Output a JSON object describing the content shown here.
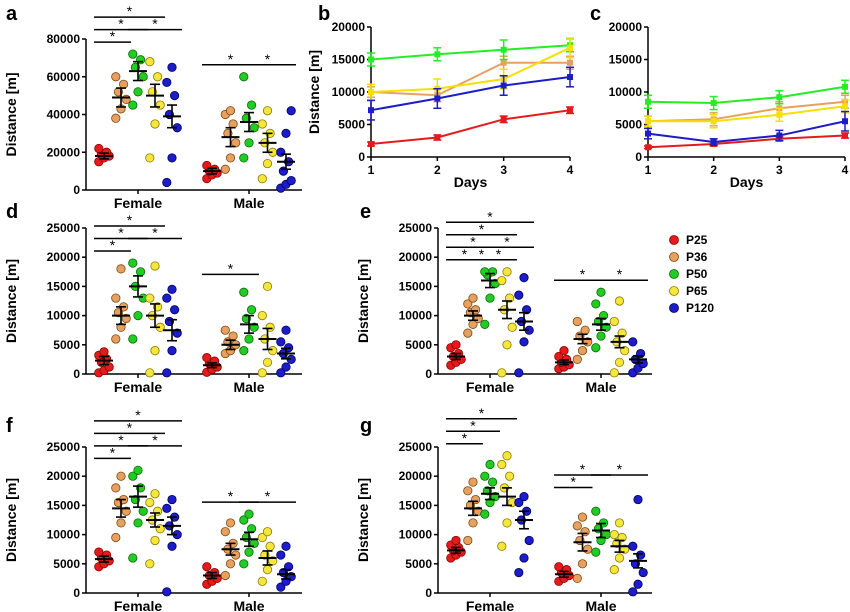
{
  "legend": [
    {
      "name": "P25",
      "color": "#e41a1c"
    },
    {
      "name": "P36",
      "color": "#e8a060"
    },
    {
      "name": "P50",
      "color": "#22cc22"
    },
    {
      "name": "P65",
      "color": "#f5e63c"
    },
    {
      "name": "P120",
      "color": "#1c1cc8"
    }
  ],
  "chart_data": [
    {
      "panel": "a",
      "type": "scatter",
      "ylabel": "Distance [m]",
      "ylim": [
        0,
        80000
      ],
      "yticks": [
        0,
        20000,
        40000,
        60000,
        80000
      ],
      "groups": [
        "Female",
        "Male"
      ],
      "means": {
        "Female": [
          18000,
          49000,
          63000,
          50000,
          39000
        ],
        "Male": [
          10000,
          28000,
          36000,
          25000,
          15000
        ]
      },
      "sem": {
        "Female": [
          1500,
          5000,
          5000,
          6000,
          6000
        ],
        "Male": [
          1500,
          5000,
          5000,
          5000,
          4000
        ]
      },
      "points": {
        "Female": [
          [
            15000,
            17000,
            18000,
            19000,
            20000,
            22000
          ],
          [
            38000,
            43000,
            48000,
            52000,
            56000,
            60000
          ],
          [
            45000,
            52000,
            60000,
            65000,
            69000,
            72000
          ],
          [
            17000,
            35000,
            45000,
            52000,
            60000,
            68000
          ],
          [
            4000,
            17000,
            33000,
            40000,
            50000,
            57000,
            65000
          ]
        ],
        "Male": [
          [
            6000,
            8000,
            9000,
            10000,
            11000,
            13000
          ],
          [
            11000,
            17000,
            25000,
            30000,
            35000,
            40000,
            42000
          ],
          [
            17000,
            25000,
            33000,
            38000,
            45000,
            60000
          ],
          [
            6000,
            14000,
            20000,
            25000,
            30000,
            35000,
            42000
          ],
          [
            1000,
            3000,
            5000,
            10000,
            15000,
            20000,
            30000,
            42000
          ]
        ]
      },
      "sig": [
        {
          "from": 0,
          "to": 1,
          "level": 1
        },
        {
          "from": 0,
          "to": 2,
          "level": 2
        },
        {
          "from": 0,
          "to": 3,
          "level": 3
        },
        {
          "from": 2,
          "to": 4,
          "level": 2
        }
      ],
      "sigMale": [
        {
          "from": 0,
          "to": 2,
          "level": 1
        },
        {
          "from": 2,
          "to": 4,
          "level": 1
        }
      ]
    },
    {
      "panel": "b",
      "type": "line",
      "xlabel": "Days",
      "ylabel": "Distance [m]",
      "x": [
        1,
        2,
        3,
        4
      ],
      "ylim": [
        0,
        20000
      ],
      "yticks": [
        0,
        5000,
        10000,
        15000,
        20000
      ],
      "series": [
        {
          "values": [
            2000,
            3000,
            5800,
            7200
          ],
          "err": [
            300,
            400,
            500,
            500
          ]
        },
        {
          "values": [
            10000,
            9500,
            14500,
            14500
          ],
          "err": [
            800,
            1000,
            1000,
            1000
          ]
        },
        {
          "values": [
            15000,
            15800,
            16500,
            17200
          ],
          "err": [
            1000,
            1000,
            1500,
            1000
          ]
        },
        {
          "values": [
            10000,
            10500,
            12000,
            16800
          ],
          "err": [
            1200,
            1500,
            1500,
            1500
          ]
        },
        {
          "values": [
            7200,
            9000,
            11000,
            12300
          ],
          "err": [
            1500,
            1500,
            1500,
            1500
          ]
        }
      ]
    },
    {
      "panel": "c",
      "type": "line",
      "xlabel": "Days",
      "x": [
        1,
        2,
        3,
        4
      ],
      "ylim": [
        0,
        20000
      ],
      "yticks": [
        0,
        5000,
        10000,
        15000,
        20000
      ],
      "series": [
        {
          "values": [
            1500,
            2000,
            2800,
            3300
          ],
          "err": [
            200,
            300,
            300,
            400
          ]
        },
        {
          "values": [
            5500,
            5800,
            7500,
            8500
          ],
          "err": [
            800,
            1000,
            1000,
            1000
          ]
        },
        {
          "values": [
            8500,
            8300,
            9200,
            10800
          ],
          "err": [
            1000,
            1000,
            1000,
            1000
          ]
        },
        {
          "values": [
            5500,
            5500,
            6500,
            7800
          ],
          "err": [
            800,
            1000,
            1000,
            1000
          ]
        },
        {
          "values": [
            3600,
            2300,
            3300,
            5500
          ],
          "err": [
            800,
            500,
            800,
            1500
          ]
        }
      ]
    },
    {
      "panel": "d",
      "type": "scatter",
      "ylabel": "Distance [m]",
      "ylim": [
        0,
        25000
      ],
      "yticks": [
        0,
        5000,
        10000,
        15000,
        20000,
        25000
      ],
      "groups": [
        "Female",
        "Male"
      ],
      "means": {
        "Female": [
          2300,
          10000,
          15000,
          10000,
          7500
        ],
        "Male": [
          1500,
          5000,
          8500,
          6000,
          3500
        ]
      },
      "sem": {
        "Female": [
          700,
          1500,
          1800,
          2000,
          1800
        ],
        "Male": [
          400,
          800,
          1500,
          1800,
          900
        ]
      },
      "points": {
        "Female": [
          [
            200,
            600,
            1200,
            2000,
            2600,
            3200,
            3800
          ],
          [
            6000,
            8000,
            9500,
            10500,
            11500,
            13000,
            18000
          ],
          [
            6000,
            10000,
            13000,
            15000,
            17500,
            19000
          ],
          [
            200,
            4000,
            8000,
            10000,
            11500,
            13000,
            18500
          ],
          [
            200,
            4000,
            7000,
            9000,
            11000,
            13000,
            14500
          ]
        ],
        "Male": [
          [
            300,
            800,
            1200,
            1800,
            2200,
            2800
          ],
          [
            3500,
            4000,
            5000,
            5500,
            6500,
            7500
          ],
          [
            4000,
            6000,
            8000,
            9500,
            11000,
            14000
          ],
          [
            200,
            2000,
            4000,
            6000,
            8000,
            10000,
            15000
          ],
          [
            200,
            1200,
            2500,
            3500,
            4500,
            5500,
            7500
          ]
        ]
      },
      "sig": [
        {
          "from": 0,
          "to": 1,
          "level": 1
        },
        {
          "from": 0,
          "to": 2,
          "level": 2
        },
        {
          "from": 2,
          "to": 4,
          "level": 2
        },
        {
          "from": 0,
          "to": 3,
          "level": 3
        }
      ],
      "sigMale": [
        {
          "from": 0,
          "to": 2,
          "level": 1
        }
      ]
    },
    {
      "panel": "e",
      "type": "scatter",
      "ylabel": "Distance [m]",
      "ylim": [
        0,
        25000
      ],
      "yticks": [
        0,
        5000,
        10000,
        15000,
        20000,
        25000
      ],
      "groups": [
        "Female",
        "Male"
      ],
      "means": {
        "Female": [
          3000,
          10000,
          16000,
          11000,
          9000
        ],
        "Male": [
          2000,
          6000,
          8500,
          5500,
          2500
        ]
      },
      "sem": {
        "Female": [
          500,
          800,
          1200,
          1500,
          1500
        ],
        "Male": [
          400,
          800,
          1000,
          1000,
          600
        ]
      },
      "points": {
        "Female": [
          [
            1500,
            2000,
            2500,
            3000,
            3500,
            4500,
            5000
          ],
          [
            7000,
            8500,
            9500,
            10500,
            11000,
            12000,
            13000
          ],
          [
            8500,
            13000,
            15500,
            17000,
            17500,
            17500
          ],
          [
            200,
            5000,
            8000,
            11000,
            13000,
            16000,
            17500
          ],
          [
            200,
            5500,
            7500,
            9000,
            11000,
            13500,
            16500
          ]
        ],
        "Male": [
          [
            900,
            1200,
            1600,
            2000,
            2500,
            3000,
            4000
          ],
          [
            2500,
            4000,
            5500,
            6500,
            7500,
            9000
          ],
          [
            4500,
            6500,
            8000,
            9000,
            10000,
            12000,
            14000
          ],
          [
            200,
            2000,
            4000,
            5500,
            7000,
            9000,
            12500
          ],
          [
            200,
            1000,
            1800,
            2500,
            3500,
            5500
          ]
        ]
      },
      "sig": [
        {
          "from": 0,
          "to": 1,
          "level": 1
        },
        {
          "from": 1,
          "to": 2,
          "level": 1
        },
        {
          "from": 2,
          "to": 3,
          "level": 1
        },
        {
          "from": 0,
          "to": 2,
          "level": 2
        },
        {
          "from": 2,
          "to": 4,
          "level": 2
        },
        {
          "from": 0,
          "to": 3,
          "level": 3
        },
        {
          "from": 0,
          "to": 4,
          "level": 4
        }
      ],
      "sigMale": [
        {
          "from": 0,
          "to": 2,
          "level": 1
        },
        {
          "from": 2,
          "to": 4,
          "level": 1
        }
      ]
    },
    {
      "panel": "f",
      "type": "scatter",
      "ylabel": "Distance [m]",
      "ylim": [
        0,
        25000
      ],
      "yticks": [
        0,
        5000,
        10000,
        15000,
        20000,
        25000
      ],
      "groups": [
        "Female",
        "Male"
      ],
      "means": {
        "Female": [
          5800,
          14500,
          16500,
          12500,
          11500
        ],
        "Male": [
          3000,
          7500,
          9200,
          6000,
          3200
        ]
      },
      "sem": {
        "Female": [
          500,
          1500,
          1800,
          1200,
          1500
        ],
        "Male": [
          500,
          1000,
          1200,
          1200,
          800
        ]
      },
      "points": {
        "Female": [
          [
            4500,
            5000,
            5500,
            6000,
            6500,
            7000
          ],
          [
            9500,
            12000,
            14000,
            15500,
            16000,
            18000,
            20000
          ],
          [
            6000,
            12000,
            14000,
            16000,
            18000,
            20000,
            21000
          ],
          [
            5000,
            9000,
            11000,
            12500,
            14000,
            15500,
            17000
          ],
          [
            200,
            8000,
            10000,
            11500,
            13000,
            14500,
            16000
          ]
        ],
        "Male": [
          [
            1500,
            2000,
            2500,
            3000,
            3500,
            4500
          ],
          [
            3000,
            5000,
            6500,
            7500,
            8500,
            10500,
            12000
          ],
          [
            5000,
            7000,
            8500,
            9500,
            11000,
            12500,
            13500
          ],
          [
            2000,
            4000,
            5500,
            6500,
            8000,
            9500,
            10500
          ],
          [
            1000,
            2000,
            2800,
            3500,
            4500,
            6500,
            8000
          ]
        ]
      },
      "sig": [
        {
          "from": 0,
          "to": 1,
          "level": 1
        },
        {
          "from": 0,
          "to": 2,
          "level": 2
        },
        {
          "from": 2,
          "to": 4,
          "level": 2
        },
        {
          "from": 0,
          "to": 3,
          "level": 3
        },
        {
          "from": 0,
          "to": 4,
          "level": 4
        }
      ],
      "sigMale": [
        {
          "from": 0,
          "to": 2,
          "level": 1
        },
        {
          "from": 2,
          "to": 4,
          "level": 1
        }
      ]
    },
    {
      "panel": "g",
      "type": "scatter",
      "ylabel": "Distance [m]",
      "ylim": [
        0,
        25000
      ],
      "yticks": [
        0,
        5000,
        10000,
        15000,
        20000,
        25000
      ],
      "groups": [
        "Female",
        "Male"
      ],
      "means": {
        "Female": [
          7300,
          14500,
          17000,
          16500,
          12500
        ],
        "Male": [
          3200,
          8700,
          10700,
          8000,
          5500
        ]
      },
      "sem": {
        "Female": [
          500,
          1200,
          1000,
          1500,
          1500
        ],
        "Male": [
          500,
          1500,
          1200,
          1000,
          1200
        ]
      },
      "points": {
        "Female": [
          [
            6000,
            6500,
            7000,
            7300,
            7800,
            8200,
            9000
          ],
          [
            9000,
            12000,
            14000,
            15000,
            16000,
            17500,
            19000
          ],
          [
            13500,
            15500,
            16500,
            17500,
            19000,
            20000,
            22000
          ],
          [
            8000,
            12000,
            15500,
            18000,
            20000,
            22000,
            23500
          ],
          [
            3500,
            6000,
            9000,
            12500,
            14000,
            15500,
            16500
          ]
        ],
        "Male": [
          [
            2000,
            2500,
            3000,
            3500,
            4000,
            4500
          ],
          [
            2500,
            5000,
            7500,
            9000,
            10500,
            11500,
            13000
          ],
          [
            7000,
            9000,
            10000,
            11000,
            12000,
            14000
          ],
          [
            4000,
            6000,
            7500,
            8500,
            9500,
            10000,
            12000
          ],
          [
            200,
            1500,
            3500,
            5000,
            6500,
            8000,
            16000
          ]
        ]
      },
      "sig": [
        {
          "from": 0,
          "to": 1,
          "level": 1
        },
        {
          "from": 0,
          "to": 2,
          "level": 2
        },
        {
          "from": 0,
          "to": 3,
          "level": 3
        }
      ],
      "sigMale": [
        {
          "from": 0,
          "to": 1,
          "level": 1
        },
        {
          "from": 0,
          "to": 2,
          "level": 2
        },
        {
          "from": 2,
          "to": 4,
          "level": 2
        }
      ]
    }
  ]
}
